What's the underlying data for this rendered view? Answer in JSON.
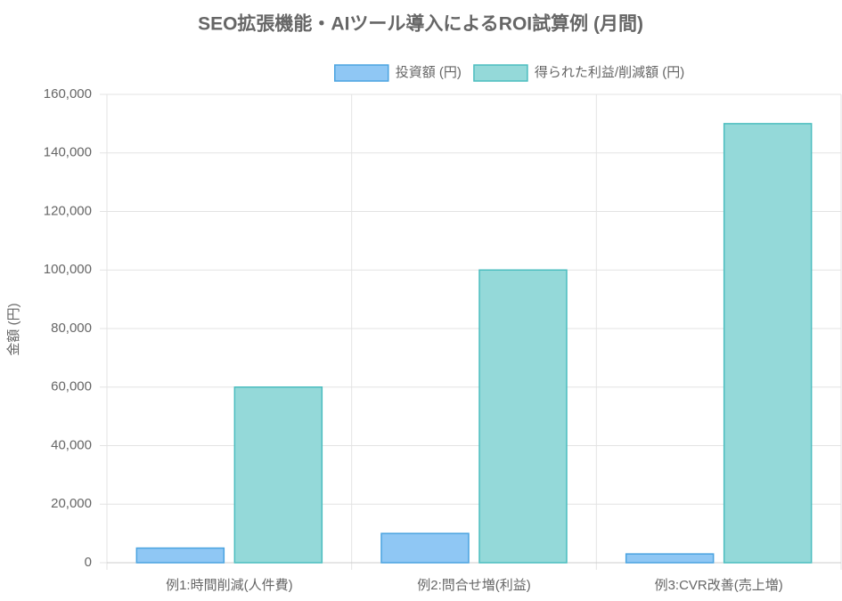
{
  "chart_data": {
    "type": "bar",
    "title": "SEO拡張機能・AIツール導入によるROI試算例 (月間)",
    "y_label": "金額 (円)",
    "categories": [
      "例1:時間削減(人件費)",
      "例2:問合せ増(利益)",
      "例3:CVR改善(売上増)"
    ],
    "series": [
      {
        "name": "投資額 (円)",
        "color": "#8fc7f4",
        "border_color": "#4aa3e0",
        "values": [
          5000,
          10000,
          3000
        ]
      },
      {
        "name": "得られた利益/削減額 (円)",
        "color": "#94d9d9",
        "border_color": "#4bbdbf",
        "values": [
          60000,
          100000,
          150000
        ]
      }
    ],
    "ylim": [
      0,
      160000
    ],
    "yticks": [
      0,
      {
        "value": 20000,
        "label": "20,000"
      },
      {
        "value": 40000,
        "label": "40,000"
      },
      {
        "value": 60000,
        "label": "60,000"
      },
      {
        "value": 80000,
        "label": "80,000"
      },
      {
        "value": 100000,
        "label": "100,000"
      },
      {
        "value": 120000,
        "label": "120,000"
      },
      {
        "value": 140000,
        "label": "140,000"
      },
      {
        "value": 160000,
        "label": "160,000"
      }
    ],
    "grid": true,
    "legend": "top"
  }
}
